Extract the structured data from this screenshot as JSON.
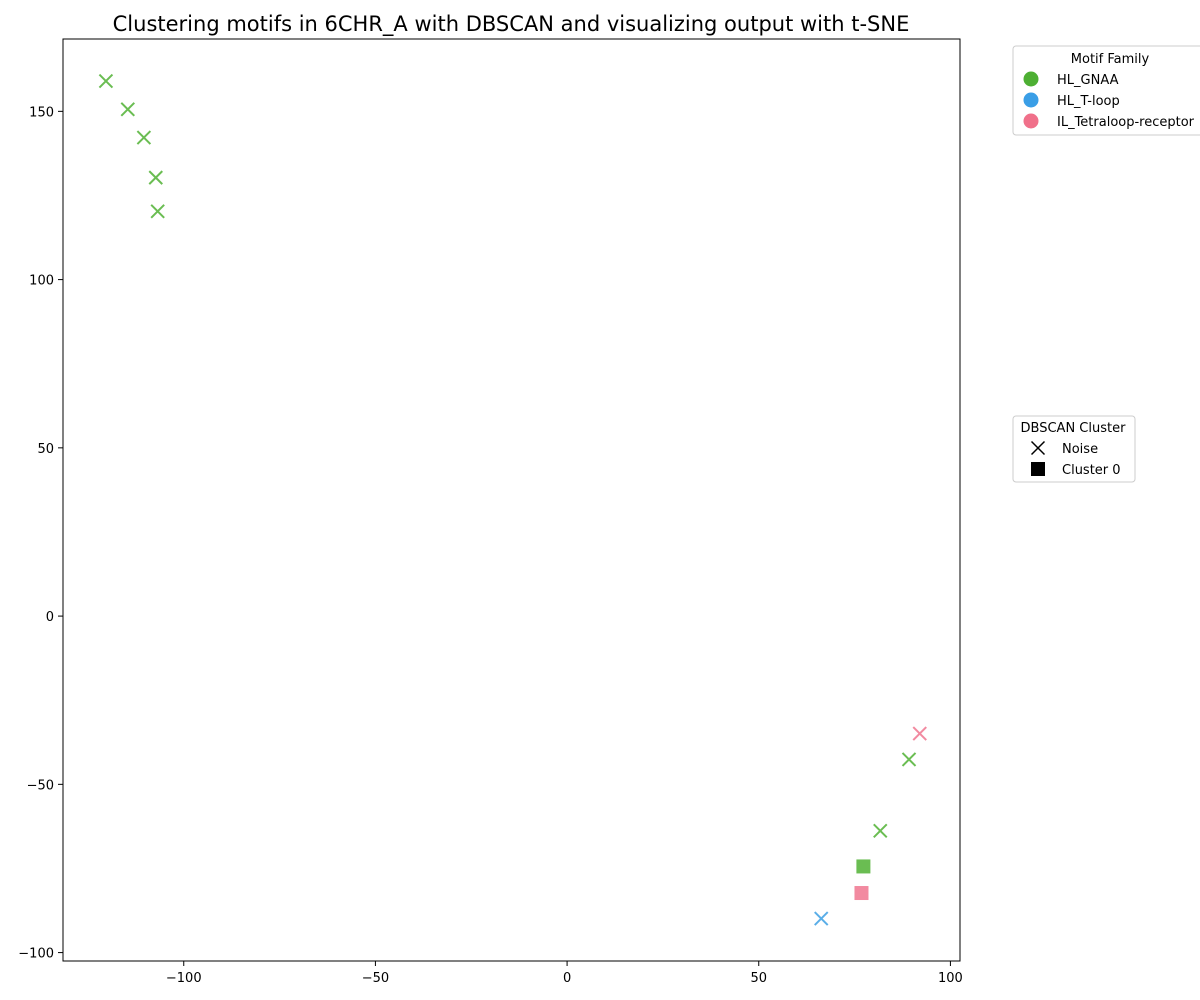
{
  "chart_data": {
    "type": "scatter",
    "title": "Clustering motifs in 6CHR_A with DBSCAN and visualizing output with t-SNE",
    "xlabel": "",
    "ylabel": "",
    "xlim": [
      -131.5,
      102.5
    ],
    "ylim": [
      -102.5,
      171.5
    ],
    "x_ticks": [
      -100,
      -50,
      0,
      50,
      100
    ],
    "y_ticks": [
      -100,
      -50,
      0,
      50,
      100,
      150
    ],
    "x_tick_labels": [
      "−100",
      "−50",
      "0",
      "50",
      "100"
    ],
    "y_tick_labels": [
      "−100",
      "−50",
      "0",
      "50",
      "100",
      "150"
    ],
    "grid": false,
    "legends": [
      {
        "title": "Motif Family",
        "placement": "outside-top-right",
        "entries": [
          {
            "label": "HL_GNAA",
            "color": "#4daf33",
            "marker": "circle"
          },
          {
            "label": "HL_T-loop",
            "color": "#3a9ee6",
            "marker": "circle"
          },
          {
            "label": "IL_Tetraloop-receptor",
            "color": "#f0708a",
            "marker": "circle"
          }
        ]
      },
      {
        "title": "DBSCAN Cluster",
        "placement": "outside-middle-right",
        "entries": [
          {
            "label": "Noise",
            "color": "#000000",
            "marker": "x"
          },
          {
            "label": "Cluster 0",
            "color": "#000000",
            "marker": "square"
          }
        ]
      }
    ],
    "families": {
      "HL_GNAA": "#6abd52",
      "HL_T-loop": "#5aaee8",
      "IL_Tetraloop-receptor": "#f28aa0"
    },
    "points": [
      {
        "x": -120.3,
        "y": 159.0,
        "family": "HL_GNAA",
        "cluster": "Noise"
      },
      {
        "x": -114.6,
        "y": 150.6,
        "family": "HL_GNAA",
        "cluster": "Noise"
      },
      {
        "x": -110.4,
        "y": 142.2,
        "family": "HL_GNAA",
        "cluster": "Noise"
      },
      {
        "x": -107.3,
        "y": 130.3,
        "family": "HL_GNAA",
        "cluster": "Noise"
      },
      {
        "x": -106.8,
        "y": 120.3,
        "family": "HL_GNAA",
        "cluster": "Noise"
      },
      {
        "x": 92.0,
        "y": -34.9,
        "family": "IL_Tetraloop-receptor",
        "cluster": "Noise"
      },
      {
        "x": 89.2,
        "y": -42.6,
        "family": "HL_GNAA",
        "cluster": "Noise"
      },
      {
        "x": 81.7,
        "y": -63.8,
        "family": "HL_GNAA",
        "cluster": "Noise"
      },
      {
        "x": 77.3,
        "y": -74.4,
        "family": "HL_GNAA",
        "cluster": "Cluster 0"
      },
      {
        "x": 76.8,
        "y": -82.3,
        "family": "IL_Tetraloop-receptor",
        "cluster": "Cluster 0"
      },
      {
        "x": 66.3,
        "y": -89.9,
        "family": "HL_T-loop",
        "cluster": "Noise"
      }
    ]
  }
}
